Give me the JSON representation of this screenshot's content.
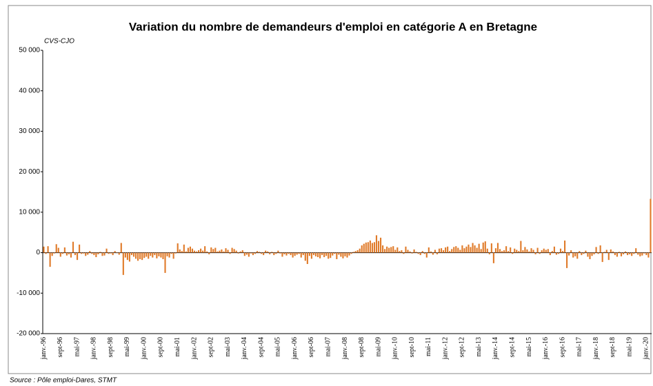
{
  "chart_data": {
    "type": "bar",
    "title": "Variation du nombre de demandeurs d'emploi en catégorie A en Bretagne",
    "subtitle": "CVS-CJO",
    "source": "Source : Pôle emploi-Dares, STMT",
    "color": "#e07b2a",
    "ylim": [
      -20000,
      50000
    ],
    "yticks": [
      {
        "value": -20000,
        "label": "-20 000"
      },
      {
        "value": -10000,
        "label": "-10 000"
      },
      0,
      {
        "value": 10000,
        "label": "10 000"
      },
      {
        "value": 20000,
        "label": "20 000"
      },
      {
        "value": 30000,
        "label": "30 000"
      },
      {
        "value": 40000,
        "label": "40 000"
      },
      {
        "value": 50000,
        "label": "50 000"
      }
    ],
    "categories": [
      "janv.-96",
      null,
      null,
      null,
      null,
      null,
      null,
      null,
      "sept-96",
      null,
      null,
      null,
      null,
      null,
      null,
      null,
      "mai-97",
      null,
      null,
      null,
      null,
      null,
      null,
      null,
      "janv.-98",
      null,
      null,
      null,
      null,
      null,
      null,
      null,
      "sept-98",
      null,
      null,
      null,
      null,
      null,
      null,
      null,
      "mai-99",
      null,
      null,
      null,
      null,
      null,
      null,
      null,
      "janv.-00",
      null,
      null,
      null,
      null,
      null,
      null,
      null,
      "sept-00",
      null,
      null,
      null,
      null,
      null,
      null,
      null,
      "mai-01",
      null,
      null,
      null,
      null,
      null,
      null,
      null,
      "janv.-02",
      null,
      null,
      null,
      null,
      null,
      null,
      null,
      "sept-02",
      null,
      null,
      null,
      null,
      null,
      null,
      null,
      "mai-03",
      null,
      null,
      null,
      null,
      null,
      null,
      null,
      "janv.-04",
      null,
      null,
      null,
      null,
      null,
      null,
      null,
      "sept-04",
      null,
      null,
      null,
      null,
      null,
      null,
      null,
      "mai-05",
      null,
      null,
      null,
      null,
      null,
      null,
      null,
      "janv.-06",
      null,
      null,
      null,
      null,
      null,
      null,
      null,
      "sept-06",
      null,
      null,
      null,
      null,
      null,
      null,
      null,
      "mai-07",
      null,
      null,
      null,
      null,
      null,
      null,
      null,
      "janv.-08",
      null,
      null,
      null,
      null,
      null,
      null,
      null,
      "sept-08",
      null,
      null,
      null,
      null,
      null,
      null,
      null,
      "mai-09",
      null,
      null,
      null,
      null,
      null,
      null,
      null,
      "janv.-10",
      null,
      null,
      null,
      null,
      null,
      null,
      null,
      "sept-10",
      null,
      null,
      null,
      null,
      null,
      null,
      null,
      "mai-11",
      null,
      null,
      null,
      null,
      null,
      null,
      null,
      "janv.-12",
      null,
      null,
      null,
      null,
      null,
      null,
      null,
      "sept-12",
      null,
      null,
      null,
      null,
      null,
      null,
      null,
      "mai-13",
      null,
      null,
      null,
      null,
      null,
      null,
      null,
      "janv.-14",
      null,
      null,
      null,
      null,
      null,
      null,
      null,
      "sept-14",
      null,
      null,
      null,
      null,
      null,
      null,
      null,
      "mai-15",
      null,
      null,
      null,
      null,
      null,
      null,
      null,
      "janv.-16",
      null,
      null,
      null,
      null,
      null,
      null,
      null,
      "sept-16",
      null,
      null,
      null,
      null,
      null,
      null,
      null,
      "mai-17",
      null,
      null,
      null,
      null,
      null,
      null,
      null,
      "janv.-18",
      null,
      null,
      null,
      null,
      null,
      null,
      null,
      "sept-18",
      null,
      null,
      null,
      null,
      null,
      null,
      null,
      "mai-19",
      null,
      null,
      null,
      null,
      null,
      null,
      null,
      "janv.-20",
      null,
      null
    ],
    "values": [
      1500,
      -300,
      1600,
      -3500,
      -800,
      -200,
      2100,
      1200,
      -1000,
      -300,
      1300,
      -700,
      -400,
      -1200,
      2700,
      -600,
      -1800,
      2000,
      -300,
      -200,
      -800,
      -500,
      400,
      -300,
      -600,
      -1100,
      -400,
      200,
      -800,
      -700,
      1000,
      -300,
      -200,
      -600,
      400,
      -100,
      -500,
      2400,
      -5500,
      -1200,
      -1800,
      -2200,
      -600,
      -1000,
      -1500,
      -2000,
      -1600,
      -1800,
      -1300,
      -1000,
      -1500,
      -800,
      -1200,
      -600,
      -1400,
      -900,
      -1200,
      -1600,
      -5000,
      -900,
      -1200,
      -300,
      -1500,
      -200,
      2300,
      800,
      400,
      2000,
      300,
      1200,
      1500,
      1000,
      500,
      300,
      600,
      1000,
      500,
      1600,
      300,
      -400,
      1300,
      900,
      1200,
      300,
      500,
      800,
      300,
      1100,
      700,
      -300,
      1200,
      900,
      500,
      -200,
      300,
      600,
      -800,
      -500,
      -1000,
      -200,
      -600,
      -300,
      400,
      200,
      -300,
      -600,
      500,
      300,
      -400,
      200,
      -600,
      -300,
      500,
      -200,
      -1000,
      -400,
      -700,
      -300,
      -600,
      -1200,
      -800,
      -500,
      -300,
      -1200,
      -600,
      -2000,
      -2800,
      -800,
      -1500,
      -600,
      -900,
      -1100,
      -1400,
      -600,
      -1100,
      -800,
      -1500,
      -1300,
      -700,
      -300,
      -1600,
      -500,
      -1000,
      -1400,
      -900,
      -1200,
      -700,
      -300,
      200,
      400,
      600,
      1000,
      1800,
      2200,
      2500,
      2600,
      3000,
      2400,
      2600,
      4300,
      2900,
      3700,
      1800,
      900,
      1500,
      1200,
      1400,
      1600,
      700,
      1300,
      400,
      600,
      -300,
      1500,
      700,
      300,
      -200,
      800,
      200,
      -300,
      -600,
      400,
      -300,
      -1200,
      1300,
      300,
      -500,
      700,
      -400,
      1000,
      1100,
      600,
      1300,
      1500,
      400,
      900,
      1400,
      1600,
      1200,
      700,
      1800,
      1100,
      1500,
      2000,
      1400,
      2400,
      1800,
      1200,
      2200,
      900,
      2500,
      2800,
      1000,
      -400,
      2300,
      -2600,
      1100,
      2400,
      900,
      400,
      600,
      1600,
      400,
      1300,
      -300,
      1000,
      700,
      400,
      2900,
      600,
      1400,
      800,
      300,
      1100,
      700,
      -400,
      1200,
      -300,
      600,
      1000,
      700,
      900,
      -600,
      400,
      1500,
      -500,
      -300,
      1000,
      400,
      3000,
      -3800,
      -700,
      600,
      -1200,
      -900,
      -1500,
      400,
      -600,
      -300,
      500,
      -1000,
      -1600,
      -800,
      -400,
      1400,
      -300,
      1800,
      -2300,
      200,
      700,
      -1800,
      800,
      300,
      -600,
      -1000,
      200,
      -900,
      -400,
      300,
      -600,
      -400,
      -800,
      -300,
      1100,
      -500,
      -900,
      -700,
      -200,
      -600,
      -1200,
      13300
    ]
  }
}
